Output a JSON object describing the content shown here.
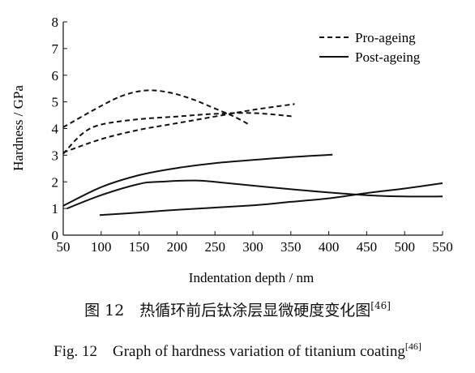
{
  "chart_data": {
    "type": "line",
    "title": "",
    "xlabel": "Indentation depth / nm",
    "ylabel": "Hardness / GPa",
    "xlim": [
      50,
      550
    ],
    "ylim": [
      0,
      8
    ],
    "x_ticks": [
      "50",
      "100",
      "150",
      "200",
      "250",
      "300",
      "350",
      "400",
      "450",
      "500",
      "550"
    ],
    "y_ticks": [
      "0",
      "1",
      "2",
      "3",
      "4",
      "5",
      "6",
      "7",
      "8"
    ],
    "legend_position": "top-right",
    "legend": [
      {
        "label": "Pro-ageing",
        "style": "dashed"
      },
      {
        "label": "Post-ageing",
        "style": "solid"
      }
    ],
    "series": [
      {
        "group": "Pro-ageing",
        "style": "dashed",
        "points": [
          [
            50,
            4.05
          ],
          [
            100,
            4.85
          ],
          [
            130,
            5.25
          ],
          [
            160,
            5.43
          ],
          [
            190,
            5.35
          ],
          [
            220,
            5.1
          ],
          [
            250,
            4.75
          ],
          [
            275,
            4.45
          ],
          [
            295,
            4.15
          ]
        ]
      },
      {
        "group": "Pro-ageing",
        "style": "dashed",
        "points": [
          [
            50,
            3.05
          ],
          [
            75,
            3.8
          ],
          [
            100,
            4.15
          ],
          [
            150,
            4.35
          ],
          [
            200,
            4.45
          ],
          [
            250,
            4.55
          ],
          [
            300,
            4.58
          ],
          [
            355,
            4.45
          ]
        ]
      },
      {
        "group": "Pro-ageing",
        "style": "dashed",
        "points": [
          [
            50,
            3.1
          ],
          [
            100,
            3.6
          ],
          [
            150,
            3.95
          ],
          [
            200,
            4.2
          ],
          [
            250,
            4.45
          ],
          [
            300,
            4.7
          ],
          [
            355,
            4.92
          ]
        ]
      },
      {
        "group": "Post-ageing",
        "style": "solid",
        "points": [
          [
            50,
            1.1
          ],
          [
            100,
            1.8
          ],
          [
            150,
            2.25
          ],
          [
            200,
            2.52
          ],
          [
            250,
            2.7
          ],
          [
            300,
            2.82
          ],
          [
            350,
            2.93
          ],
          [
            405,
            3.02
          ]
        ]
      },
      {
        "group": "Post-ageing",
        "style": "solid",
        "points": [
          [
            55,
            1.0
          ],
          [
            100,
            1.5
          ],
          [
            150,
            1.92
          ],
          [
            175,
            2.0
          ],
          [
            225,
            2.05
          ],
          [
            260,
            1.97
          ],
          [
            320,
            1.8
          ],
          [
            400,
            1.6
          ],
          [
            450,
            1.5
          ],
          [
            500,
            1.45
          ],
          [
            550,
            1.45
          ]
        ]
      },
      {
        "group": "Post-ageing",
        "style": "solid",
        "points": [
          [
            98,
            0.75
          ],
          [
            150,
            0.85
          ],
          [
            200,
            0.95
          ],
          [
            300,
            1.12
          ],
          [
            350,
            1.25
          ],
          [
            400,
            1.38
          ],
          [
            450,
            1.58
          ],
          [
            500,
            1.75
          ],
          [
            550,
            1.95
          ]
        ]
      }
    ]
  },
  "caption": {
    "cn_main": "图 12　热循环前后钛涂层显微硬度变化图",
    "cn_ref": "[46]",
    "en_main": "Fig. 12　Graph of hardness variation of titanium coating",
    "en_ref": "[46]"
  }
}
